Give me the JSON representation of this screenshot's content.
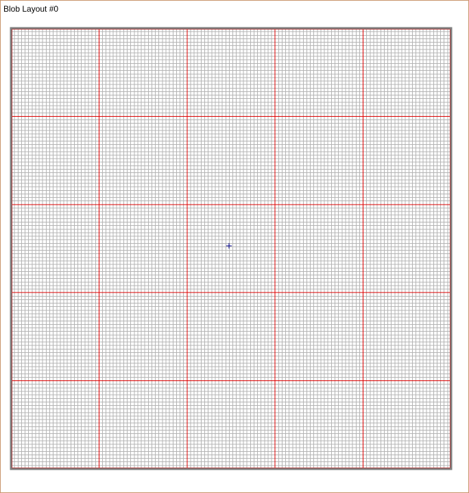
{
  "window": {
    "title": "Blob Layout #0"
  },
  "grid": {
    "fine_divisions": 125,
    "major_divisions": 5,
    "colors": {
      "fine_line": "#b4b4b4",
      "major_line": "#dd0000",
      "border": "#7f7f7f",
      "origin_marker": "#00008b"
    },
    "origin_marker": "plus-marker"
  }
}
